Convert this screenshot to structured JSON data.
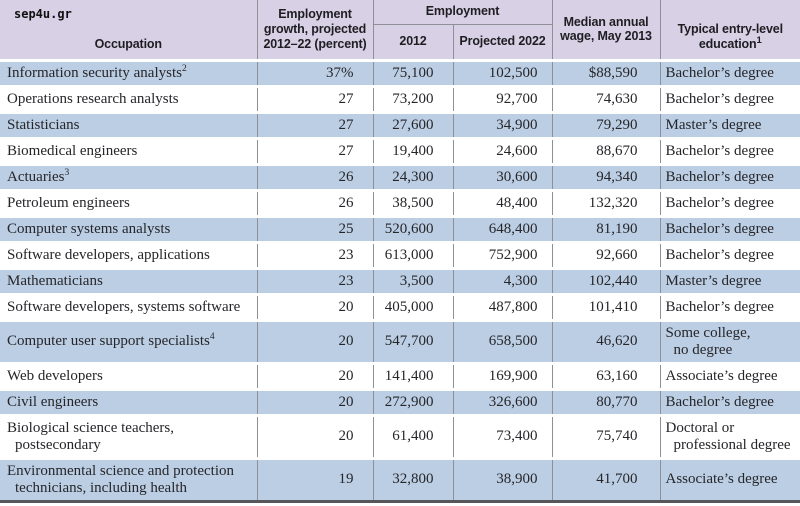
{
  "watermark": "sep4u.gr",
  "colors": {
    "header_bg": "#d8d0e5",
    "row_blue": "#bccee4",
    "row_white": "#ffffff",
    "grid_line": "#8f9097",
    "bottom_border": "#56575c",
    "text_color": "#1e1e22",
    "body_text": "#26262a"
  },
  "chart_data": {
    "type": "table",
    "header": {
      "occupation": "Occupation",
      "growth": "Employment\ngrowth, projected\n2012–22 (percent)",
      "employment_group": "Employment",
      "employment_2012": "2012",
      "employment_2022": "Projected 2022",
      "wage": "Median annual\nwage, May 2013",
      "education": "Typical entry-level\neducation",
      "education_footnote_sup": "1"
    },
    "rows": [
      {
        "occupation_lines": [
          "Information security analysts"
        ],
        "footnote": "2",
        "growth": "37%",
        "employment_2012": "75,100",
        "employment_2022": "102,500",
        "wage": "$88,590",
        "education_lines": [
          "Bachelor’s degree"
        ]
      },
      {
        "occupation_lines": [
          "Operations research analysts"
        ],
        "growth": "27",
        "employment_2012": "73,200",
        "employment_2022": "92,700",
        "wage": "74,630",
        "education_lines": [
          "Bachelor’s degree"
        ]
      },
      {
        "occupation_lines": [
          "Statisticians"
        ],
        "growth": "27",
        "employment_2012": "27,600",
        "employment_2022": "34,900",
        "wage": "79,290",
        "education_lines": [
          "Master’s degree"
        ]
      },
      {
        "occupation_lines": [
          "Biomedical engineers"
        ],
        "growth": "27",
        "employment_2012": "19,400",
        "employment_2022": "24,600",
        "wage": "88,670",
        "education_lines": [
          "Bachelor’s degree"
        ]
      },
      {
        "occupation_lines": [
          "Actuaries"
        ],
        "footnote": "3",
        "growth": "26",
        "employment_2012": "24,300",
        "employment_2022": "30,600",
        "wage": "94,340",
        "education_lines": [
          "Bachelor’s degree"
        ]
      },
      {
        "occupation_lines": [
          "Petroleum engineers"
        ],
        "growth": "26",
        "employment_2012": "38,500",
        "employment_2022": "48,400",
        "wage": "132,320",
        "education_lines": [
          "Bachelor’s degree"
        ]
      },
      {
        "occupation_lines": [
          "Computer systems analysts"
        ],
        "growth": "25",
        "employment_2012": "520,600",
        "employment_2022": "648,400",
        "wage": "81,190",
        "education_lines": [
          "Bachelor’s degree"
        ]
      },
      {
        "occupation_lines": [
          "Software developers, applications"
        ],
        "growth": "23",
        "employment_2012": "613,000",
        "employment_2022": "752,900",
        "wage": "92,660",
        "education_lines": [
          "Bachelor’s degree"
        ]
      },
      {
        "occupation_lines": [
          "Mathematicians"
        ],
        "growth": "23",
        "employment_2012": "3,500",
        "employment_2022": "4,300",
        "wage": "102,440",
        "education_lines": [
          "Master’s degree"
        ]
      },
      {
        "occupation_lines": [
          "Software developers, systems software"
        ],
        "growth": "20",
        "employment_2012": "405,000",
        "employment_2022": "487,800",
        "wage": "101,410",
        "education_lines": [
          "Bachelor’s degree"
        ]
      },
      {
        "occupation_lines": [
          "Computer user support specialists"
        ],
        "footnote": "4",
        "growth": "20",
        "employment_2012": "547,700",
        "employment_2022": "658,500",
        "wage": "46,620",
        "education_lines": [
          "Some college,",
          "no degree"
        ]
      },
      {
        "occupation_lines": [
          "Web developers"
        ],
        "growth": "20",
        "employment_2012": "141,400",
        "employment_2022": "169,900",
        "wage": "63,160",
        "education_lines": [
          "Associate’s degree"
        ]
      },
      {
        "occupation_lines": [
          "Civil engineers"
        ],
        "growth": "20",
        "employment_2012": "272,900",
        "employment_2022": "326,600",
        "wage": "80,770",
        "education_lines": [
          "Bachelor’s degree"
        ]
      },
      {
        "occupation_lines": [
          "Biological science teachers,",
          "postsecondary"
        ],
        "growth": "20",
        "employment_2012": "61,400",
        "employment_2022": "73,400",
        "wage": "75,740",
        "education_lines": [
          "Doctoral or",
          "professional degree"
        ]
      },
      {
        "occupation_lines": [
          "Environmental science and protection",
          "technicians, including health"
        ],
        "growth": "19",
        "employment_2012": "32,800",
        "employment_2022": "38,900",
        "wage": "41,700",
        "education_lines": [
          "Associate’s degree"
        ]
      }
    ]
  }
}
